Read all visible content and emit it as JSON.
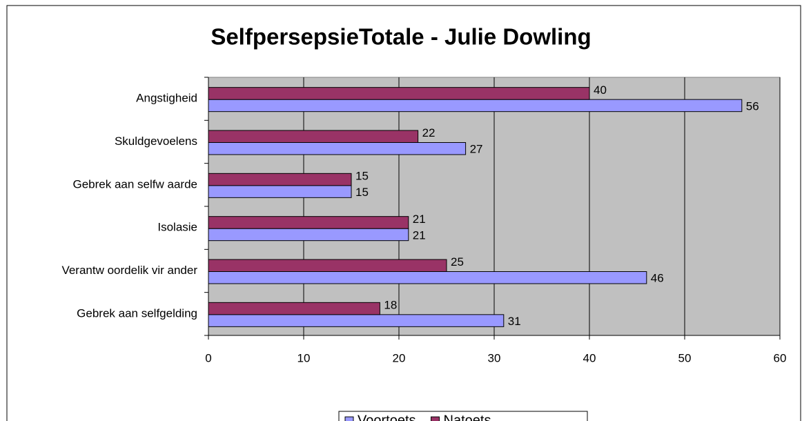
{
  "chart_data": {
    "type": "hbar",
    "title": "SelfpersepsieTotale - Julie Dowling",
    "categories": [
      "Angstigheid",
      "Skuldgevoelens",
      "Gebrek aan selfw aarde",
      "Isolasie",
      "Verantw oordelik vir ander",
      "Gebrek aan selfgelding"
    ],
    "series": [
      {
        "name": "Voortoets",
        "color": "#9999ff",
        "values": [
          56,
          27,
          15,
          21,
          46,
          31
        ]
      },
      {
        "name": "Natoets",
        "color": "#993366",
        "values": [
          40,
          22,
          15,
          21,
          25,
          18
        ]
      }
    ],
    "xlim": [
      0,
      60
    ],
    "xticks": [
      0,
      10,
      20,
      30,
      40,
      50,
      60
    ],
    "grid": true,
    "legend": "bottom"
  }
}
